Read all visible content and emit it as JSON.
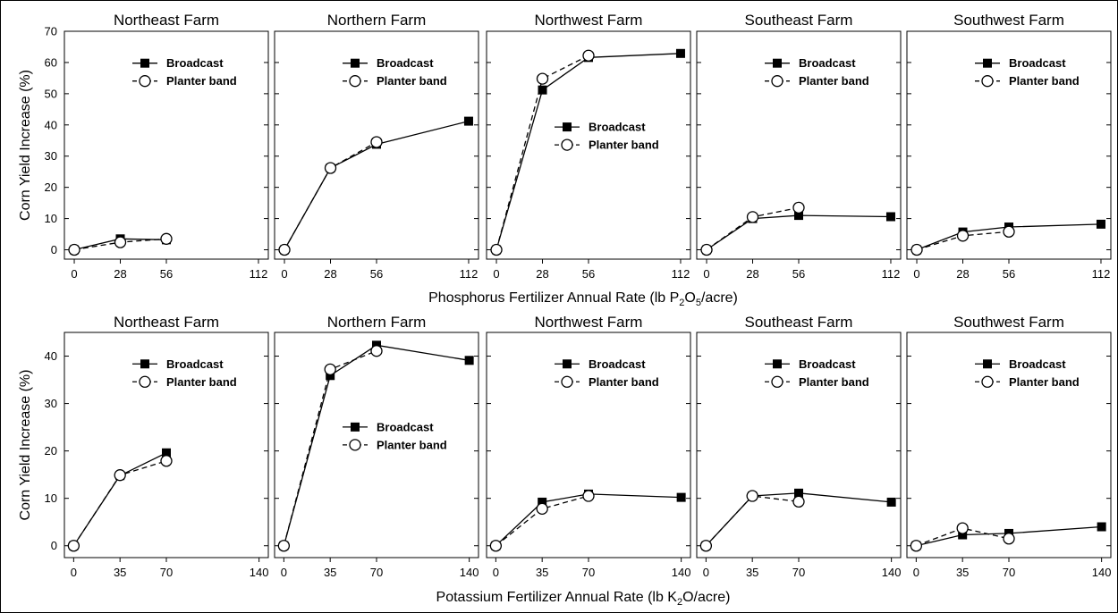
{
  "chart_data": {
    "type": "line",
    "series_names": [
      "Broadcast",
      "Planter band"
    ],
    "rows": [
      {
        "row": "phosphorus",
        "xlabel_main": "Phosphorus Fertilizer Annual Rate (lb P",
        "xlabel_sub": "2",
        "xlabel_mid": "O",
        "xlabel_sub2": "5",
        "xlabel_end": "/acre)",
        "ylabel": "Corn Yield Increase (%)",
        "x_ticks": [
          0,
          28,
          56,
          112
        ],
        "x_tick_labels": [
          "0",
          "28",
          "56",
          "112"
        ],
        "xlim": [
          -6,
          118
        ],
        "ylim": [
          -3,
          70
        ],
        "y_ticks": [
          0,
          10,
          20,
          30,
          40,
          50,
          60,
          70
        ],
        "y_tick_labels": [
          "0",
          "10",
          "20",
          "30",
          "40",
          "50",
          "60",
          "70"
        ],
        "panels": [
          {
            "title": "Northeast Farm",
            "legend": "upper",
            "series": [
              {
                "name": "Broadcast",
                "x": [
                  0,
                  28,
                  56
                ],
                "y": [
                  0,
                  3.5,
                  3.2
                ]
              },
              {
                "name": "Planter band",
                "x": [
                  0,
                  28,
                  56
                ],
                "y": [
                  0,
                  2.4,
                  3.5
                ]
              }
            ]
          },
          {
            "title": "Northern Farm",
            "legend": "upper",
            "series": [
              {
                "name": "Broadcast",
                "x": [
                  0,
                  28,
                  56,
                  112
                ],
                "y": [
                  0,
                  26.2,
                  33.8,
                  41.2
                ]
              },
              {
                "name": "Planter band",
                "x": [
                  0,
                  28,
                  56
                ],
                "y": [
                  0,
                  26.2,
                  34.5
                ]
              }
            ]
          },
          {
            "title": "Northwest Farm",
            "legend": "middle",
            "series": [
              {
                "name": "Broadcast",
                "x": [
                  0,
                  28,
                  56,
                  112
                ],
                "y": [
                  0,
                  51.2,
                  61.6,
                  62.9
                ]
              },
              {
                "name": "Planter band",
                "x": [
                  0,
                  28,
                  56
                ],
                "y": [
                  0,
                  54.8,
                  62.2
                ]
              }
            ]
          },
          {
            "title": "Southeast Farm",
            "legend": "upper",
            "series": [
              {
                "name": "Broadcast",
                "x": [
                  0,
                  28,
                  56,
                  112
                ],
                "y": [
                  0,
                  10,
                  11,
                  10.6
                ]
              },
              {
                "name": "Planter band",
                "x": [
                  0,
                  28,
                  56
                ],
                "y": [
                  0,
                  10.5,
                  13.5
                ]
              }
            ]
          },
          {
            "title": "Southwest Farm",
            "legend": "upper",
            "series": [
              {
                "name": "Broadcast",
                "x": [
                  0,
                  28,
                  56,
                  112
                ],
                "y": [
                  0,
                  5.7,
                  7.3,
                  8.2
                ]
              },
              {
                "name": "Planter band",
                "x": [
                  0,
                  28,
                  56
                ],
                "y": [
                  0,
                  4.5,
                  5.8
                ]
              }
            ]
          }
        ]
      },
      {
        "row": "potassium",
        "xlabel_main": "Potassium Fertilizer Annual Rate (lb K",
        "xlabel_sub": "2",
        "xlabel_mid": "O/acre)",
        "xlabel_sub2": "",
        "xlabel_end": "",
        "ylabel": "Corn Yield Increase (%)",
        "x_ticks": [
          0,
          35,
          70,
          140
        ],
        "x_tick_labels": [
          "0",
          "35",
          "70",
          "140"
        ],
        "xlim": [
          -7,
          147
        ],
        "ylim": [
          -2.5,
          45
        ],
        "y_ticks": [
          0,
          10,
          20,
          30,
          40
        ],
        "y_tick_labels": [
          "0",
          "10",
          "20",
          "30",
          "40"
        ],
        "panels": [
          {
            "title": "Northeast Farm",
            "legend": "upper",
            "series": [
              {
                "name": "Broadcast",
                "x": [
                  0,
                  35,
                  70
                ],
                "y": [
                  0,
                  14.8,
                  19.6
                ]
              },
              {
                "name": "Planter band",
                "x": [
                  0,
                  35,
                  70
                ],
                "y": [
                  0,
                  14.9,
                  17.9
                ]
              }
            ]
          },
          {
            "title": "Northern Farm",
            "legend": "middle",
            "series": [
              {
                "name": "Broadcast",
                "x": [
                  0,
                  35,
                  70,
                  140
                ],
                "y": [
                  0,
                  35.9,
                  42.3,
                  39.1
                ]
              },
              {
                "name": "Planter band",
                "x": [
                  0,
                  35,
                  70
                ],
                "y": [
                  0,
                  37.2,
                  41.1
                ]
              }
            ]
          },
          {
            "title": "Northwest Farm",
            "legend": "upper",
            "series": [
              {
                "name": "Broadcast",
                "x": [
                  0,
                  35,
                  70,
                  140
                ],
                "y": [
                  0,
                  9.2,
                  10.9,
                  10.2
                ]
              },
              {
                "name": "Planter band",
                "x": [
                  0,
                  35,
                  70
                ],
                "y": [
                  0,
                  7.8,
                  10.5
                ]
              }
            ]
          },
          {
            "title": "Southeast Farm",
            "legend": "upper",
            "series": [
              {
                "name": "Broadcast",
                "x": [
                  0,
                  35,
                  70,
                  140
                ],
                "y": [
                  0,
                  10.5,
                  11.1,
                  9.2
                ]
              },
              {
                "name": "Planter band",
                "x": [
                  0,
                  35,
                  70
                ],
                "y": [
                  0,
                  10.5,
                  9.3
                ]
              }
            ]
          },
          {
            "title": "Southwest Farm",
            "legend": "upper",
            "series": [
              {
                "name": "Broadcast",
                "x": [
                  0,
                  35,
                  70,
                  140
                ],
                "y": [
                  0,
                  2.3,
                  2.6,
                  4
                ]
              },
              {
                "name": "Planter band",
                "x": [
                  0,
                  35,
                  70
                ],
                "y": [
                  0,
                  3.7,
                  1.5
                ]
              }
            ]
          }
        ]
      }
    ]
  }
}
